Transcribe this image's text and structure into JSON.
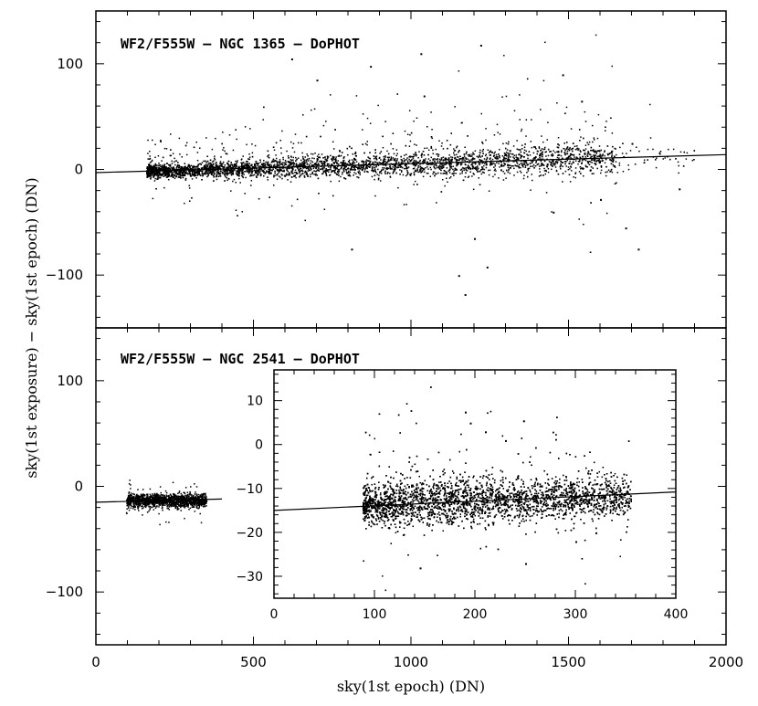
{
  "chart_data": [
    {
      "id": "top",
      "type": "scatter",
      "title": "WF2/F555W – NGC 1365 – DoPHOT",
      "xlim": [
        0,
        2000
      ],
      "ylim": [
        -150,
        150
      ],
      "xticks": [
        0,
        500,
        1000,
        1500,
        2000
      ],
      "yticks": [
        -100,
        0,
        100
      ],
      "ytick_labels": [
        "−100",
        "0",
        "100"
      ],
      "fit_line": {
        "x": [
          0,
          2000
        ],
        "y": [
          -3,
          14
        ]
      },
      "cloud": {
        "x_min": 160,
        "x_max": 1900,
        "y_center_at_x0": -3,
        "slope": 0.0085,
        "core_spread": 5,
        "note_outlier_scatter": true
      },
      "points": [
        {
          "x": 180,
          "y": -2
        },
        {
          "x": 240,
          "y": -4
        },
        {
          "x": 320,
          "y": -1
        },
        {
          "x": 450,
          "y": 2
        },
        {
          "x": 620,
          "y": 105
        },
        {
          "x": 700,
          "y": 85
        },
        {
          "x": 870,
          "y": 98
        },
        {
          "x": 1030,
          "y": 110
        },
        {
          "x": 1220,
          "y": 118
        },
        {
          "x": 1040,
          "y": 70
        },
        {
          "x": 1480,
          "y": 90
        },
        {
          "x": 1540,
          "y": 65
        },
        {
          "x": 1700,
          "y": 25
        },
        {
          "x": 1850,
          "y": -18
        },
        {
          "x": 1720,
          "y": -75
        },
        {
          "x": 1680,
          "y": -55
        },
        {
          "x": 1150,
          "y": -100
        },
        {
          "x": 1170,
          "y": -118
        },
        {
          "x": 1240,
          "y": -92
        },
        {
          "x": 810,
          "y": -75
        },
        {
          "x": 1200,
          "y": -65
        },
        {
          "x": 1450,
          "y": -40
        },
        {
          "x": 1600,
          "y": -28
        }
      ]
    },
    {
      "id": "bottom",
      "type": "scatter",
      "title": "WF2/F555W – NGC 2541 – DoPHOT",
      "xlim": [
        0,
        2000
      ],
      "ylim": [
        -150,
        150
      ],
      "xticks": [
        0,
        500,
        1000,
        1500,
        2000
      ],
      "yticks": [
        -100,
        0,
        100
      ],
      "ytick_labels": [
        "−100",
        "0",
        "100"
      ],
      "fit_line": {
        "x": [
          0,
          400
        ],
        "y": [
          -15,
          -12
        ]
      },
      "cloud": {
        "x_min": 95,
        "x_max": 350,
        "y_center": -13,
        "core_spread": 3
      }
    },
    {
      "id": "inset",
      "type": "scatter",
      "xlim": [
        0,
        400
      ],
      "ylim": [
        -35,
        17
      ],
      "xticks": [
        0,
        100,
        200,
        300,
        400
      ],
      "yticks": [
        -30,
        -20,
        -10,
        0,
        10
      ],
      "ytick_labels": [
        "−30",
        "−20",
        "−10",
        "0",
        "10"
      ],
      "fit_line": {
        "x": [
          0,
          400
        ],
        "y": [
          -15,
          -10.8
        ]
      },
      "cloud": {
        "x_min": 88,
        "x_max": 355,
        "y_center": -13,
        "core_spread": 2.2
      },
      "points": [
        {
          "x": 190,
          "y": 7.5
        },
        {
          "x": 195,
          "y": 5
        },
        {
          "x": 248,
          "y": 5.5
        },
        {
          "x": 210,
          "y": 3
        },
        {
          "x": 145,
          "y": -28
        },
        {
          "x": 250,
          "y": -27
        },
        {
          "x": 300,
          "y": -22
        },
        {
          "x": 320,
          "y": -20
        },
        {
          "x": 230,
          "y": 1
        }
      ]
    }
  ],
  "labels": {
    "xlabel": "sky(1st epoch) (DN)",
    "ylabel": "sky(1st exposure) − sky(1st epoch) (DN)"
  }
}
